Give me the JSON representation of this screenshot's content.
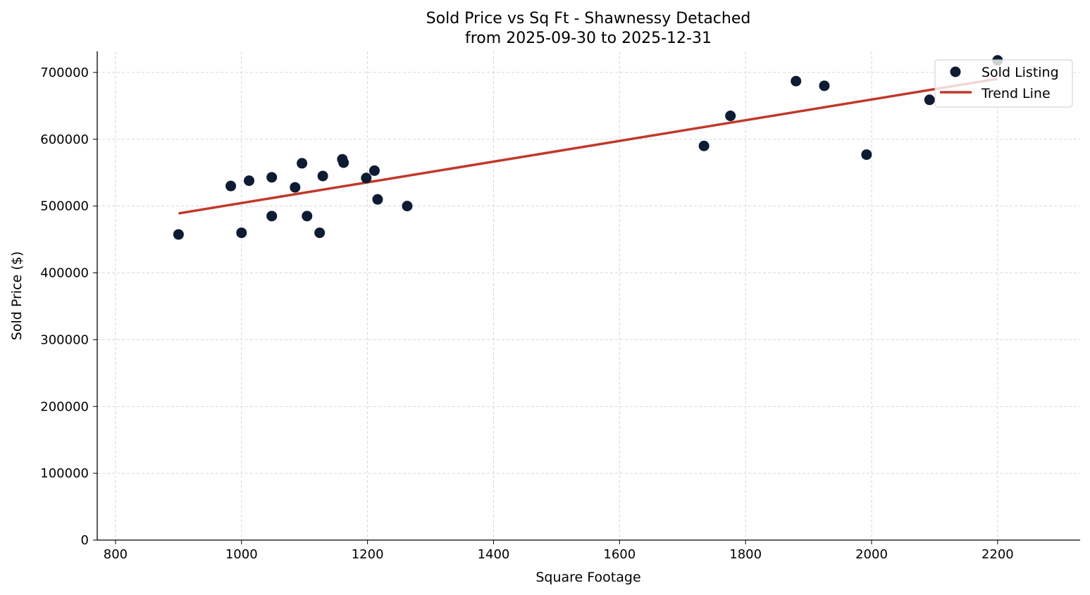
{
  "chart_data": {
    "type": "scatter",
    "title": "Sold Price vs Sq Ft - Shawnessy Detached",
    "subtitle": "from 2025-09-30 to 2025-12-31",
    "xlabel": "Square Footage",
    "ylabel": "Sold Price ($)",
    "xlim": [
      771,
      2331
    ],
    "ylim": [
      0,
      731500
    ],
    "xticks": [
      800,
      1000,
      1200,
      1400,
      1600,
      1800,
      2000,
      2200
    ],
    "yticks": [
      0,
      100000,
      200000,
      300000,
      400000,
      500000,
      600000,
      700000
    ],
    "grid": true,
    "legend_position": "upper-right",
    "series": [
      {
        "name": "Sold Listing",
        "kind": "scatter",
        "color": "#0d1b33",
        "points": [
          [
            900,
            457500
          ],
          [
            983,
            530000
          ],
          [
            1000,
            460000
          ],
          [
            1012,
            538000
          ],
          [
            1048,
            543000
          ],
          [
            1048,
            485000
          ],
          [
            1085,
            528000
          ],
          [
            1096,
            564000
          ],
          [
            1104,
            485000
          ],
          [
            1124,
            460000
          ],
          [
            1129,
            545000
          ],
          [
            1160,
            570000
          ],
          [
            1162,
            565000
          ],
          [
            1198,
            542000
          ],
          [
            1211,
            553000
          ],
          [
            1216,
            510000
          ],
          [
            1263,
            500000
          ],
          [
            1734,
            590000
          ],
          [
            1776,
            635000
          ],
          [
            1880,
            687000
          ],
          [
            1925,
            680000
          ],
          [
            1992,
            577000
          ],
          [
            2092,
            659000
          ],
          [
            2200,
            718000
          ]
        ]
      },
      {
        "name": "Trend Line",
        "kind": "line",
        "color": "#c0392b",
        "points": [
          [
            900,
            489000
          ],
          [
            2200,
            690500
          ]
        ]
      }
    ]
  }
}
